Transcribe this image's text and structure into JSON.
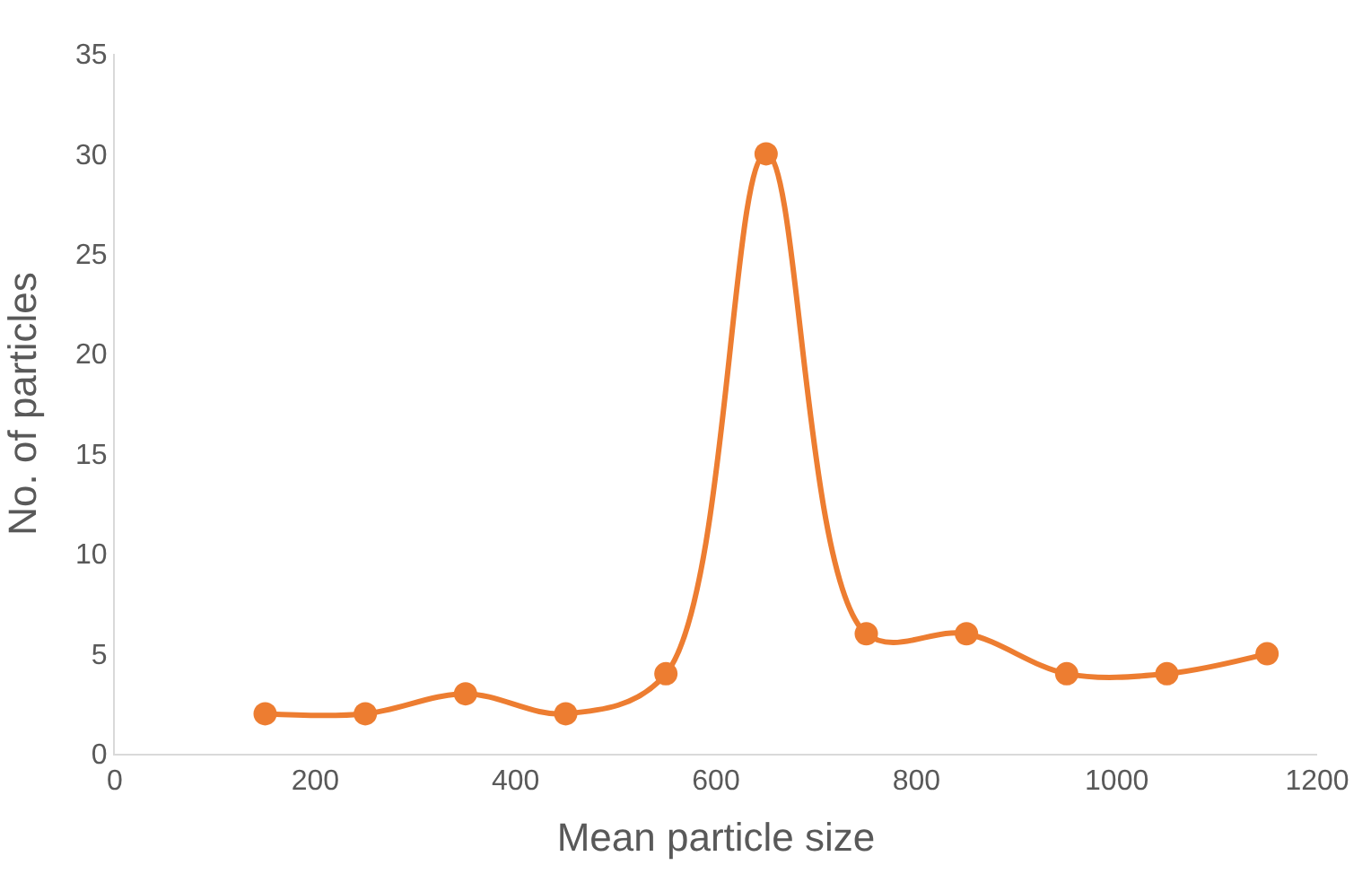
{
  "chart_data": {
    "type": "line",
    "xlabel": "Mean particle size",
    "ylabel": "No. of particles",
    "x": [
      150,
      250,
      350,
      450,
      550,
      650,
      750,
      850,
      950,
      1050,
      1150
    ],
    "series": [
      {
        "color": "#ed7d31",
        "values": [
          2,
          2,
          3,
          2,
          4,
          30,
          6,
          6,
          4,
          4,
          5
        ]
      }
    ],
    "xlim": [
      0,
      1200
    ],
    "xticks": [
      0,
      200,
      400,
      600,
      800,
      1000,
      1200
    ],
    "ylim": [
      0,
      35
    ],
    "yticks": [
      0,
      5,
      10,
      15,
      20,
      25,
      30,
      35
    ],
    "grid": false,
    "legend": false,
    "marker": "circle",
    "line_style": "solid"
  }
}
